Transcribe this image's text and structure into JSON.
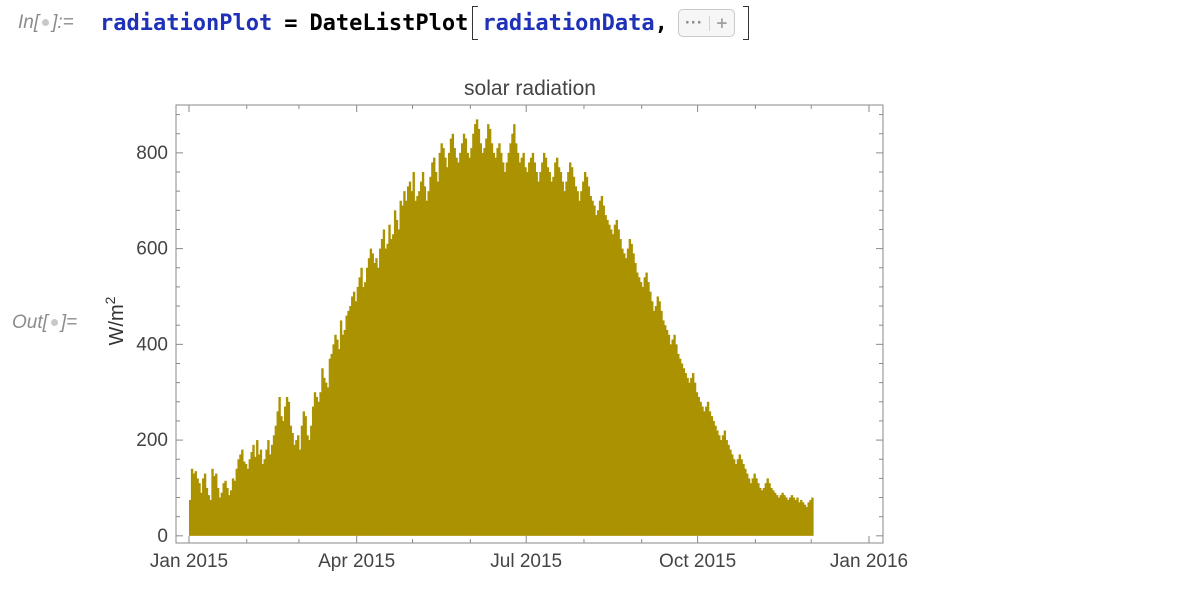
{
  "input_label": {
    "prefix": "In[",
    "suffix": "]:="
  },
  "output_label": {
    "prefix": "Out[",
    "suffix": "]="
  },
  "code": {
    "assign_var": "radiationPlot",
    "operator": "=",
    "function": "DateListPlot",
    "argument": "radiationData",
    "comma": ",",
    "options_more": "···",
    "options_add": "+"
  },
  "chart_data": {
    "type": "bar",
    "title": "solar radiation",
    "xlabel": "",
    "ylabel": "W/m",
    "ylabel_superscript": "2",
    "x_start": "2015-01-01",
    "x_end": "2016-01-01",
    "ylim": [
      -15,
      900
    ],
    "yticks": [
      0,
      200,
      400,
      600,
      800
    ],
    "xticks": [
      {
        "date": "2015-01-01",
        "label": "Jan 2015"
      },
      {
        "date": "2015-04-01",
        "label": "Apr 2015"
      },
      {
        "date": "2015-07-01",
        "label": "Jul 2015"
      },
      {
        "date": "2015-10-01",
        "label": "Oct 2015"
      },
      {
        "date": "2016-01-01",
        "label": "Jan 2016"
      }
    ],
    "grid": false,
    "color": "#ab9200",
    "series": [
      {
        "frequency": "daily",
        "start": "2015-01-01",
        "values": [
          75,
          140,
          130,
          135,
          120,
          110,
          90,
          120,
          130,
          100,
          85,
          75,
          140,
          125,
          130,
          100,
          80,
          90,
          110,
          115,
          100,
          85,
          95,
          120,
          115,
          140,
          160,
          170,
          180,
          155,
          150,
          140,
          160,
          175,
          190,
          165,
          200,
          170,
          180,
          150,
          160,
          180,
          200,
          170,
          190,
          210,
          230,
          260,
          290,
          250,
          240,
          270,
          290,
          280,
          230,
          215,
          190,
          200,
          210,
          180,
          230,
          260,
          250,
          210,
          200,
          230,
          270,
          300,
          290,
          280,
          300,
          350,
          330,
          320,
          310,
          370,
          380,
          400,
          420,
          410,
          390,
          450,
          420,
          430,
          460,
          470,
          480,
          500,
          510,
          490,
          520,
          540,
          560,
          520,
          530,
          560,
          580,
          600,
          590,
          570,
          580,
          560,
          600,
          620,
          640,
          600,
          610,
          650,
          620,
          630,
          680,
          660,
          640,
          700,
          690,
          720,
          700,
          730,
          740,
          720,
          760,
          700,
          710,
          720,
          740,
          760,
          730,
          700,
          720,
          750,
          780,
          790,
          760,
          740,
          800,
          820,
          810,
          790,
          770,
          800,
          830,
          840,
          810,
          790,
          780,
          800,
          820,
          840,
          830,
          800,
          790,
          810,
          840,
          860,
          870,
          850,
          820,
          800,
          810,
          830,
          860,
          850,
          820,
          800,
          790,
          810,
          820,
          800,
          780,
          760,
          780,
          800,
          820,
          840,
          860,
          820,
          800,
          780,
          790,
          800,
          770,
          760,
          780,
          790,
          800,
          780,
          760,
          740,
          760,
          780,
          800,
          790,
          770,
          760,
          740,
          750,
          780,
          790,
          770,
          760,
          740,
          720,
          740,
          760,
          780,
          770,
          750,
          730,
          720,
          700,
          720,
          740,
          760,
          750,
          730,
          710,
          700,
          690,
          670,
          680,
          700,
          710,
          690,
          670,
          660,
          650,
          640,
          630,
          650,
          660,
          640,
          620,
          600,
          590,
          580,
          600,
          620,
          610,
          590,
          570,
          550,
          540,
          530,
          520,
          540,
          550,
          530,
          510,
          490,
          470,
          480,
          500,
          490,
          470,
          450,
          440,
          430,
          420,
          400,
          410,
          420,
          400,
          380,
          370,
          360,
          350,
          340,
          330,
          320,
          330,
          340,
          320,
          300,
          290,
          280,
          270,
          260,
          270,
          280,
          260,
          250,
          240,
          230,
          220,
          210,
          200,
          210,
          220,
          200,
          190,
          180,
          170,
          160,
          150,
          160,
          170,
          160,
          150,
          140,
          130,
          120,
          110,
          120,
          130,
          120,
          110,
          100,
          95,
          100,
          110,
          120,
          110,
          100,
          95,
          90,
          85,
          80,
          85,
          90,
          85,
          80,
          75,
          80,
          85,
          80,
          75,
          80,
          70,
          75,
          70,
          65,
          60,
          70,
          75,
          80
        ]
      }
    ]
  }
}
